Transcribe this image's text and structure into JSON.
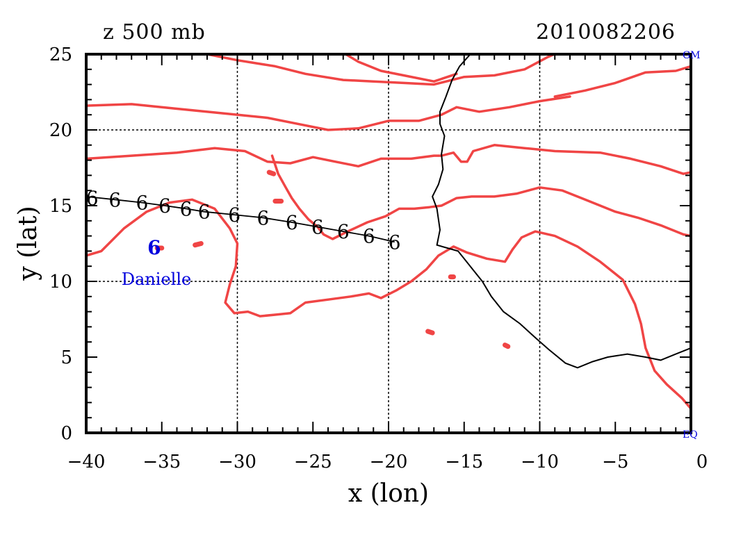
{
  "chart_data": {
    "type": "line",
    "title_left": "z 500 mb",
    "title_right": "2010082206",
    "xlabel": "x (lon)",
    "ylabel": "y (lat)",
    "xlim": [
      -40,
      0
    ],
    "ylim": [
      0,
      25
    ],
    "x_ticks": [
      -40,
      -35,
      -30,
      -25,
      -20,
      -15,
      -10,
      -5,
      0
    ],
    "y_ticks": [
      0,
      5,
      10,
      15,
      20,
      25
    ],
    "x_tick_labels": [
      "−40",
      "−35",
      "−30",
      "−25",
      "−20",
      "−15",
      "−10",
      "−5",
      "0"
    ],
    "y_tick_labels": [
      "0",
      "5",
      "10",
      "15",
      "20",
      "25"
    ],
    "grid_x": [
      -30,
      -20,
      -10
    ],
    "grid_y": [
      10,
      20
    ],
    "corner_top": "GM",
    "corner_bottom": "EQ",
    "colors": {
      "contour": "#f04545",
      "coast": "#000000",
      "storm": "#0000dd"
    },
    "contours": [
      [
        [
          -32.5,
          25.1
        ],
        [
          -30,
          24.6
        ],
        [
          -27.5,
          24.2
        ],
        [
          -25.5,
          23.7
        ],
        [
          -23,
          23.3
        ],
        [
          -21,
          23.2
        ],
        [
          -19,
          23.1
        ],
        [
          -17,
          23.0
        ],
        [
          -15,
          23.5
        ],
        [
          -13,
          23.6
        ],
        [
          -11,
          24.0
        ],
        [
          -9.5,
          24.8
        ],
        [
          -8.8,
          25.1
        ]
      ],
      [
        [
          -23,
          25.1
        ],
        [
          -22,
          24.5
        ],
        [
          -20.5,
          23.9
        ],
        [
          -19,
          23.6
        ],
        [
          -17,
          23.2
        ],
        [
          -15.5,
          23.7
        ]
      ],
      [
        [
          -9,
          22.2
        ],
        [
          -7,
          22.6
        ],
        [
          -5,
          23.1
        ],
        [
          -3,
          23.8
        ],
        [
          -1,
          23.9
        ],
        [
          0,
          24.2
        ]
      ],
      [
        [
          -40,
          21.6
        ],
        [
          -37,
          21.7
        ],
        [
          -34,
          21.4
        ],
        [
          -31,
          21.1
        ],
        [
          -28,
          20.8
        ],
        [
          -26,
          20.4
        ],
        [
          -24,
          20.0
        ],
        [
          -22,
          20.1
        ],
        [
          -20,
          20.6
        ],
        [
          -18,
          20.6
        ],
        [
          -16.5,
          21.0
        ],
        [
          -15.5,
          21.5
        ],
        [
          -14,
          21.2
        ],
        [
          -12,
          21.5
        ],
        [
          -10,
          21.9
        ],
        [
          -8,
          22.2
        ]
      ],
      [
        [
          -40,
          18.1
        ],
        [
          -37,
          18.3
        ],
        [
          -34,
          18.5
        ],
        [
          -31.5,
          18.8
        ],
        [
          -29.5,
          18.6
        ],
        [
          -28,
          17.9
        ],
        [
          -26.5,
          17.8
        ],
        [
          -25,
          18.2
        ],
        [
          -23.5,
          17.9
        ],
        [
          -22,
          17.6
        ],
        [
          -20.5,
          18.1
        ],
        [
          -18.5,
          18.1
        ],
        [
          -17,
          18.3
        ],
        [
          -16.5,
          18.3
        ],
        [
          -15.7,
          18.5
        ],
        [
          -15.2,
          17.9
        ],
        [
          -14.8,
          17.9
        ],
        [
          -14.4,
          18.6
        ],
        [
          -13,
          19.0
        ],
        [
          -11,
          18.8
        ],
        [
          -9,
          18.6
        ],
        [
          -6,
          18.5
        ],
        [
          -4,
          18.1
        ],
        [
          -2,
          17.6
        ],
        [
          -0.5,
          17.1
        ],
        [
          0,
          17.2
        ]
      ],
      [
        [
          -40,
          11.7
        ],
        [
          -39,
          12.0
        ],
        [
          -37.5,
          13.5
        ],
        [
          -36,
          14.6
        ],
        [
          -34.5,
          15.2
        ],
        [
          -33,
          15.4
        ],
        [
          -31.5,
          14.8
        ],
        [
          -30.5,
          13.5
        ],
        [
          -30,
          12.5
        ],
        [
          -30.1,
          11.0
        ],
        [
          -30.5,
          9.8
        ],
        [
          -30.8,
          8.6
        ],
        [
          -30.2,
          7.9
        ],
        [
          -29.3,
          8.0
        ],
        [
          -28.5,
          7.7
        ],
        [
          -27.5,
          7.8
        ],
        [
          -26.5,
          7.9
        ],
        [
          -25.5,
          8.6
        ],
        [
          -24,
          8.8
        ],
        [
          -22.5,
          9.0
        ],
        [
          -21.3,
          9.2
        ],
        [
          -20.5,
          8.9
        ],
        [
          -19.5,
          9.4
        ],
        [
          -18.5,
          10.0
        ],
        [
          -17.5,
          10.8
        ],
        [
          -16.7,
          11.7
        ],
        [
          -15.7,
          12.3
        ],
        [
          -14.8,
          11.9
        ],
        [
          -13.5,
          11.5
        ],
        [
          -12.3,
          11.3
        ],
        [
          -11.8,
          12.1
        ],
        [
          -11.2,
          12.9
        ],
        [
          -10.3,
          13.3
        ],
        [
          -9,
          13.0
        ],
        [
          -7.5,
          12.3
        ],
        [
          -6,
          11.3
        ],
        [
          -4.5,
          10.1
        ],
        [
          -3.7,
          8.5
        ],
        [
          -3.3,
          7.2
        ],
        [
          -3,
          5.6
        ],
        [
          -2.4,
          4.1
        ],
        [
          -1.6,
          3.2
        ],
        [
          -0.6,
          2.3
        ],
        [
          0,
          1.6
        ]
      ],
      [
        [
          -27.7,
          18.3
        ],
        [
          -27.3,
          17.1
        ],
        [
          -26.8,
          16.2
        ],
        [
          -26.4,
          15.5
        ],
        [
          -25.9,
          14.8
        ],
        [
          -25.3,
          14.1
        ],
        [
          -24.7,
          13.6
        ],
        [
          -24.3,
          13.1
        ],
        [
          -23.7,
          12.8
        ],
        [
          -22.7,
          13.3
        ],
        [
          -21.4,
          13.9
        ],
        [
          -20.2,
          14.3
        ],
        [
          -19.3,
          14.8
        ],
        [
          -18.3,
          14.8
        ],
        [
          -17.3,
          14.9
        ],
        [
          -16.5,
          15.0
        ],
        [
          -15.5,
          15.5
        ],
        [
          -14.5,
          15.6
        ],
        [
          -13,
          15.6
        ],
        [
          -11.5,
          15.8
        ],
        [
          -10,
          16.2
        ],
        [
          -8.5,
          16.0
        ],
        [
          -7,
          15.4
        ],
        [
          -5,
          14.6
        ],
        [
          -3.5,
          14.2
        ],
        [
          -2,
          13.7
        ],
        [
          -0.5,
          13.1
        ],
        [
          0,
          13.0
        ]
      ],
      [
        [
          -27.9,
          17.2
        ],
        [
          -27.6,
          17.1
        ]
      ],
      [
        [
          -27.5,
          15.3
        ],
        [
          -27.1,
          15.3
        ]
      ],
      [
        [
          -32.8,
          12.4
        ],
        [
          -32.4,
          12.5
        ]
      ],
      [
        [
          -35.3,
          12.2
        ],
        [
          -35.0,
          12.2
        ]
      ],
      [
        [
          -17.4,
          6.7
        ],
        [
          -17.1,
          6.6
        ]
      ],
      [
        [
          -12.3,
          5.8
        ],
        [
          -12.1,
          5.7
        ]
      ],
      [
        [
          -15.9,
          10.3
        ],
        [
          -15.7,
          10.3
        ]
      ]
    ],
    "coastline": [
      [
        -14.5,
        25.1
      ],
      [
        -15.3,
        24.2
      ],
      [
        -15.8,
        23.3
      ],
      [
        -16.2,
        22.2
      ],
      [
        -16.6,
        21.2
      ],
      [
        -16.6,
        20.4
      ],
      [
        -16.3,
        19.6
      ],
      [
        -16.5,
        18.4
      ],
      [
        -16.4,
        17.4
      ],
      [
        -16.7,
        16.4
      ],
      [
        -17.1,
        15.6
      ],
      [
        -16.8,
        14.8
      ],
      [
        -16.6,
        13.4
      ],
      [
        -16.8,
        12.4
      ],
      [
        -15.4,
        12.0
      ],
      [
        -14.6,
        11.0
      ],
      [
        -13.8,
        10.0
      ],
      [
        -13.2,
        9.0
      ],
      [
        -12.4,
        8.0
      ],
      [
        -11.3,
        7.2
      ],
      [
        -10.2,
        6.2
      ],
      [
        -9.4,
        5.5
      ],
      [
        -8.3,
        4.6
      ],
      [
        -7.5,
        4.3
      ],
      [
        -6.5,
        4.7
      ],
      [
        -5.5,
        5.0
      ],
      [
        -4.2,
        5.2
      ],
      [
        -3,
        5.0
      ],
      [
        -2,
        4.8
      ],
      [
        -1,
        5.2
      ],
      [
        0,
        5.6
      ]
    ],
    "track": {
      "storm_name": "Danielle",
      "label_position": [
        -35.5,
        10.2
      ],
      "points": [
        [
          -40,
          15.6
        ],
        [
          -38.1,
          15.4
        ],
        [
          -36.3,
          15.2
        ],
        [
          -34.8,
          15.0
        ],
        [
          -33.4,
          14.8
        ],
        [
          -32.2,
          14.6
        ],
        [
          -30.2,
          14.4
        ],
        [
          -28.3,
          14.2
        ],
        [
          -26.4,
          13.9
        ],
        [
          -24.7,
          13.6
        ],
        [
          -23,
          13.3
        ],
        [
          -21.3,
          13.0
        ],
        [
          -19.6,
          12.6
        ]
      ],
      "symbol_points": [
        [
          -39.6,
          15.5
        ],
        [
          -38.1,
          15.4
        ],
        [
          -36.3,
          15.2
        ],
        [
          -34.8,
          15.0
        ],
        [
          -33.4,
          14.8
        ],
        [
          -32.2,
          14.6
        ],
        [
          -30.2,
          14.4
        ],
        [
          -28.3,
          14.2
        ],
        [
          -26.4,
          13.9
        ],
        [
          -24.7,
          13.6
        ],
        [
          -23,
          13.3
        ],
        [
          -21.3,
          13.0
        ],
        [
          -19.6,
          12.6
        ]
      ],
      "symbol": "6",
      "current_position": [
        -35.5,
        12.3
      ]
    }
  }
}
